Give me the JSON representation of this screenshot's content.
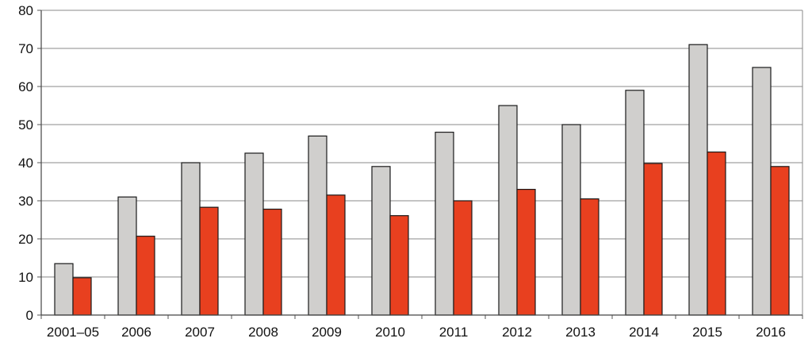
{
  "chart_data": {
    "type": "bar",
    "categories": [
      "2001–05",
      "2006",
      "2007",
      "2008",
      "2009",
      "2010",
      "2011",
      "2012",
      "2013",
      "2014",
      "2015",
      "2016"
    ],
    "series": [
      {
        "values": [
          13.5,
          31,
          40,
          42.5,
          47,
          39,
          48,
          55,
          50,
          59,
          71,
          65
        ],
        "color": "#d0cfcd"
      },
      {
        "values": [
          9.8,
          20.7,
          28.3,
          27.8,
          31.5,
          26.1,
          30,
          33,
          30.5,
          39.8,
          42.8,
          39
        ],
        "color": "#e8401f"
      }
    ],
    "ylim": [
      0,
      80
    ],
    "yticks": [
      0,
      10,
      20,
      30,
      40,
      50,
      60,
      70,
      80
    ],
    "grid": true,
    "title": "",
    "xlabel": "",
    "ylabel": ""
  }
}
